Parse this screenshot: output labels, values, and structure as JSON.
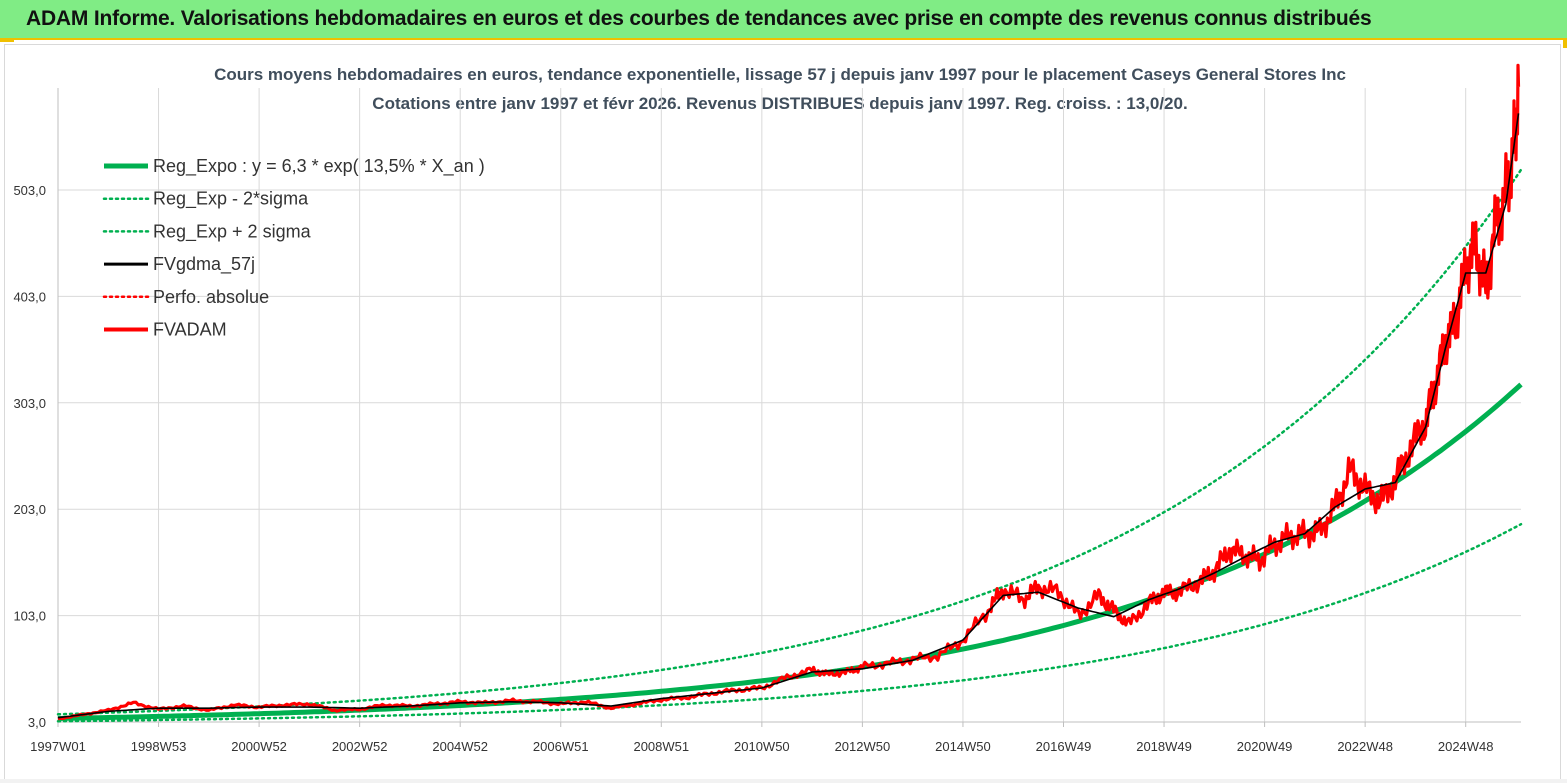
{
  "banner": {
    "title": "ADAM Informe. Valorisations hebdomadaires en euros et des courbes de tendances avec prise en compte des revenus connus distribués"
  },
  "chart_data": {
    "type": "line",
    "title": "Cours moyens hebdomadaires en euros, tendance exponentielle, lissage 57 j depuis janv 1997 pour le placement Caseys General Stores Inc",
    "subtitle": "Cotations entre janv 1997 et févr 2026. Revenus DISTRIBUES depuis janv 1997. Reg. croiss. : 13,0/20.",
    "xlabel": "",
    "ylabel": "",
    "x_start_year": 1997.0,
    "x_end_year": 2026.1,
    "ylim": [
      3,
      600
    ],
    "y_ticks": [
      3,
      103,
      203,
      303,
      403,
      503
    ],
    "y_tick_labels": [
      "3,0",
      "103,0",
      "203,0",
      "303,0",
      "403,0",
      "503,0"
    ],
    "x_tick_labels": [
      "1997W01",
      "1998W53",
      "2000W52",
      "2002W52",
      "2004W52",
      "2006W51",
      "2008W51",
      "2010W50",
      "2012W50",
      "2014W50",
      "2016W49",
      "2018W49",
      "2020W49",
      "2022W48",
      "2024W48"
    ],
    "x_tick_years": [
      1997.0,
      1999.0,
      2001.0,
      2003.0,
      2005.0,
      2007.0,
      2009.0,
      2011.0,
      2013.0,
      2015.0,
      2017.0,
      2019.0,
      2021.0,
      2023.0,
      2025.0
    ],
    "regression": {
      "a": 6.3,
      "rate": 0.135,
      "sigma_factor_upper": 1.63,
      "sigma_factor_lower": 0.59
    },
    "series": [
      {
        "name": "Reg_Expo : y = 6,3 * exp( 13,5% *  X_an )",
        "style": "solid-thick",
        "color": "#00b050"
      },
      {
        "name": "Reg_Exp - 2*sigma",
        "style": "dotted",
        "color": "#00b050"
      },
      {
        "name": "Reg_Exp + 2 sigma",
        "style": "dotted",
        "color": "#00b050"
      },
      {
        "name": "FVgdma_57j",
        "style": "solid",
        "color": "#000000"
      },
      {
        "name": "Perfo. absolue",
        "style": "dotted",
        "color": "#ff0000"
      },
      {
        "name": "FVADAM",
        "style": "solid-thick",
        "color": "#ff0000"
      }
    ],
    "fvadam": {
      "x": [
        1997.0,
        1997.5,
        1998.0,
        1998.5,
        1999.0,
        1999.5,
        2000.0,
        2000.5,
        2001.0,
        2001.5,
        2002.0,
        2002.5,
        2003.0,
        2003.5,
        2004.0,
        2004.5,
        2005.0,
        2005.5,
        2006.0,
        2006.5,
        2007.0,
        2007.5,
        2008.0,
        2008.5,
        2009.0,
        2009.5,
        2010.0,
        2010.5,
        2011.0,
        2011.5,
        2012.0,
        2012.3,
        2012.7,
        2013.0,
        2013.5,
        2014.0,
        2014.5,
        2015.0,
        2015.5,
        2015.8,
        2016.2,
        2016.5,
        2016.9,
        2017.3,
        2017.7,
        2018.0,
        2018.3,
        2018.7,
        2019.0,
        2019.3,
        2019.7,
        2020.0,
        2020.3,
        2020.6,
        2020.9,
        2021.2,
        2021.5,
        2021.8,
        2022.1,
        2022.4,
        2022.7,
        2023.0,
        2023.3,
        2023.6,
        2023.9,
        2024.2,
        2024.4,
        2024.6,
        2024.8,
        2025.0,
        2025.2,
        2025.4,
        2025.6,
        2025.8,
        2025.95,
        2026.05
      ],
      "y": [
        6,
        10,
        14,
        21,
        15,
        18,
        14,
        19,
        17,
        19,
        20,
        14,
        15,
        19,
        18,
        20,
        22,
        21,
        23,
        22,
        20,
        22,
        16,
        20,
        24,
        26,
        30,
        33,
        35,
        45,
        52,
        48,
        50,
        55,
        58,
        62,
        65,
        80,
        108,
        128,
        118,
        130,
        125,
        103,
        122,
        108,
        95,
        115,
        125,
        125,
        135,
        145,
        165,
        160,
        155,
        170,
        178,
        180,
        182,
        205,
        240,
        222,
        210,
        230,
        260,
        285,
        320,
        360,
        380,
        430,
        450,
        410,
        470,
        500,
        540,
        600
      ]
    },
    "fvgdma_57j": {
      "x": [
        1997.0,
        1998.0,
        1999.0,
        2000.0,
        2001.0,
        2002.0,
        2003.0,
        2004.0,
        2005.0,
        2006.0,
        2007.0,
        2008.0,
        2009.0,
        2010.0,
        2011.0,
        2012.0,
        2013.0,
        2014.0,
        2015.0,
        2015.8,
        2016.5,
        2017.3,
        2018.0,
        2018.7,
        2019.3,
        2020.0,
        2020.6,
        2021.2,
        2021.8,
        2022.4,
        2023.0,
        2023.6,
        2024.2,
        2024.6,
        2025.0,
        2025.4,
        2025.8,
        2026.05
      ],
      "y": [
        7,
        13,
        16,
        16,
        17,
        17,
        16,
        18,
        21,
        22,
        21,
        18,
        25,
        30,
        35,
        50,
        53,
        61,
        80,
        122,
        125,
        110,
        102,
        118,
        128,
        143,
        158,
        172,
        180,
        205,
        222,
        228,
        280,
        355,
        425,
        425,
        490,
        575
      ]
    }
  }
}
